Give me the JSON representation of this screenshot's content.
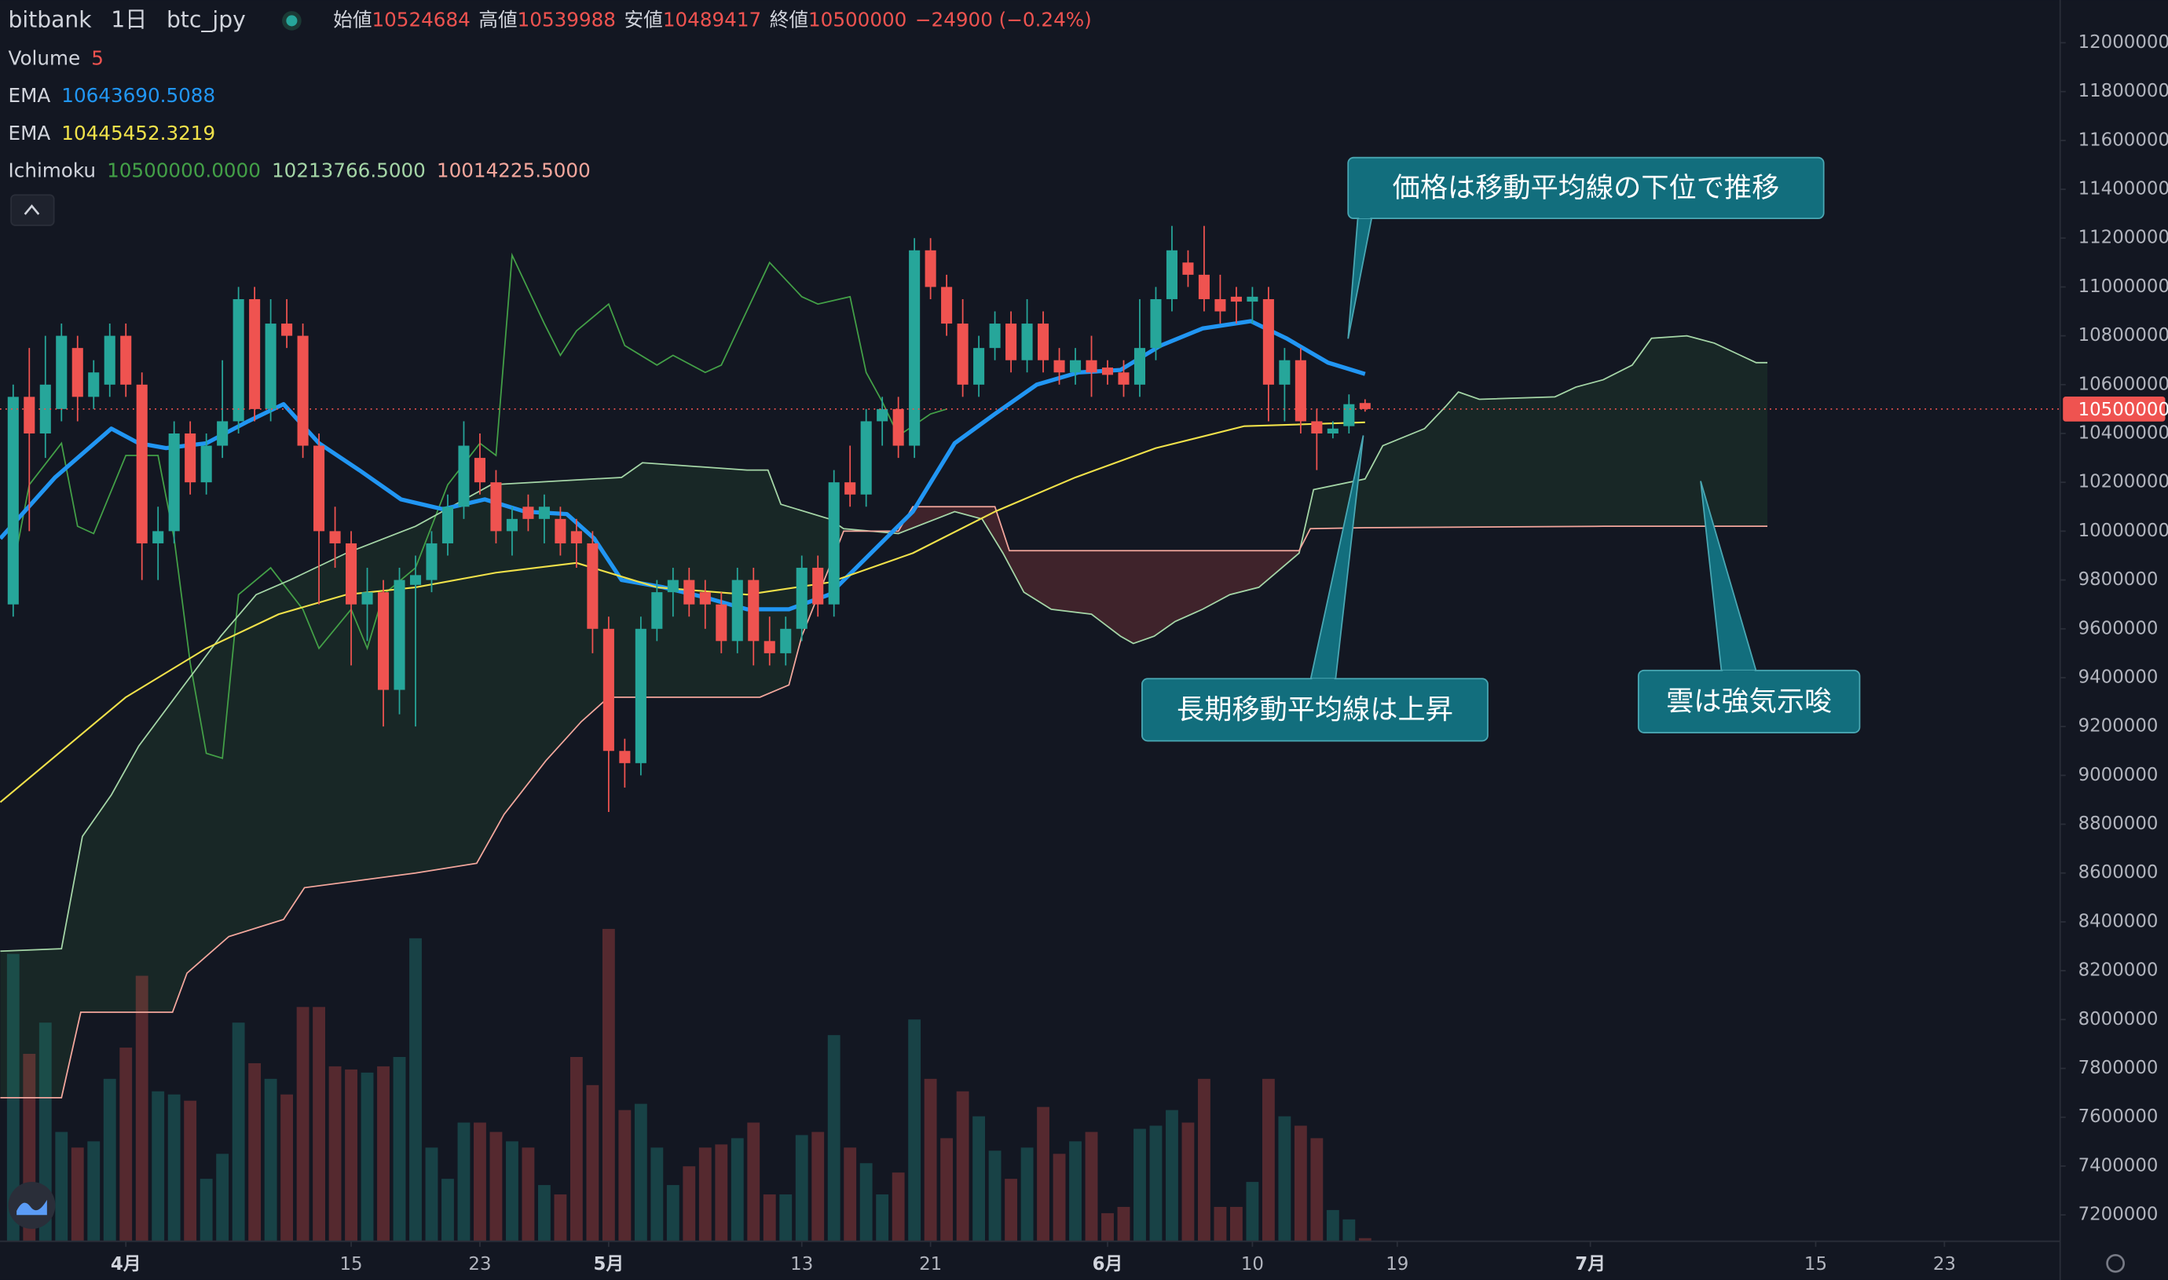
{
  "chart_data": {
    "type": "candlestick",
    "header": {
      "symbol": "bitbank",
      "interval": "1日",
      "pair": "btc_jpy",
      "open_label": "始値",
      "high_label": "高値",
      "low_label": "安値",
      "close_label": "終値",
      "change": "−24900 (−0.24%)"
    },
    "up_color": "#26a69a",
    "down_color": "#ef5350",
    "x": [
      -7,
      -6,
      -5,
      -4,
      -3,
      -2,
      -1,
      0,
      1,
      2,
      3,
      4,
      5,
      6,
      7,
      8,
      9,
      10,
      11,
      12,
      13,
      14,
      15,
      16,
      17,
      18,
      19,
      20,
      21,
      22,
      23,
      24,
      25,
      26,
      27,
      28,
      29,
      30,
      31,
      32,
      33,
      34,
      35,
      36,
      37,
      38,
      39,
      40,
      41,
      42,
      43,
      44,
      45,
      46,
      47,
      48,
      49,
      50,
      51,
      52,
      53,
      54,
      55,
      56,
      57,
      58,
      59,
      60,
      61,
      62,
      63,
      64,
      65,
      66,
      67,
      68,
      69,
      70,
      71,
      72,
      73,
      74,
      75,
      76,
      77
    ],
    "ohlc": [
      [
        9700000,
        10600000,
        9650000,
        10550000
      ],
      [
        10550000,
        10750000,
        10000000,
        10400000
      ],
      [
        10400000,
        10800000,
        10300000,
        10600000
      ],
      [
        10500000,
        10850000,
        10450000,
        10800000
      ],
      [
        10750000,
        10800000,
        10450000,
        10550000
      ],
      [
        10550000,
        10700000,
        10500000,
        10650000
      ],
      [
        10600000,
        10850000,
        10550000,
        10800000
      ],
      [
        10800000,
        10850000,
        10550000,
        10600000
      ],
      [
        10600000,
        10650000,
        9800000,
        9950000
      ],
      [
        9950000,
        10100000,
        9800000,
        10000000
      ],
      [
        10000000,
        10450000,
        9950000,
        10400000
      ],
      [
        10400000,
        10450000,
        10150000,
        10200000
      ],
      [
        10200000,
        10400000,
        10150000,
        10350000
      ],
      [
        10350000,
        10700000,
        10300000,
        10450000
      ],
      [
        10450000,
        11000000,
        10400000,
        10950000
      ],
      [
        10950000,
        11000000,
        10450000,
        10500000
      ],
      [
        10500000,
        10950000,
        10450000,
        10850000
      ],
      [
        10850000,
        10950000,
        10750000,
        10800000
      ],
      [
        10800000,
        10850000,
        10300000,
        10350000
      ],
      [
        10350000,
        10400000,
        9700000,
        10000000
      ],
      [
        10000000,
        10100000,
        9850000,
        9950000
      ],
      [
        9950000,
        10000000,
        9450000,
        9700000
      ],
      [
        9700000,
        9850000,
        9550000,
        9750000
      ],
      [
        9750000,
        9800000,
        9200000,
        9350000
      ],
      [
        9350000,
        9850000,
        9250000,
        9800000
      ],
      [
        9780000,
        9900000,
        9200000,
        9820000
      ],
      [
        9800000,
        10000000,
        9750000,
        9950000
      ],
      [
        9950000,
        10150000,
        9900000,
        10100000
      ],
      [
        10100000,
        10450000,
        10050000,
        10350000
      ],
      [
        10300000,
        10400000,
        10150000,
        10200000
      ],
      [
        10200000,
        10250000,
        9950000,
        10000000
      ],
      [
        10000000,
        10100000,
        9900000,
        10050000
      ],
      [
        10100000,
        10150000,
        10000000,
        10050000
      ],
      [
        10050000,
        10150000,
        9950000,
        10100000
      ],
      [
        10050000,
        10100000,
        9900000,
        9950000
      ],
      [
        10000000,
        10050000,
        9850000,
        9950000
      ],
      [
        9950000,
        10000000,
        9500000,
        9600000
      ],
      [
        9600000,
        9650000,
        8850000,
        9100000
      ],
      [
        9100000,
        9150000,
        8950000,
        9050000
      ],
      [
        9050000,
        9650000,
        9000000,
        9600000
      ],
      [
        9600000,
        9800000,
        9550000,
        9750000
      ],
      [
        9750000,
        9850000,
        9650000,
        9800000
      ],
      [
        9800000,
        9850000,
        9650000,
        9700000
      ],
      [
        9750000,
        9800000,
        9600000,
        9700000
      ],
      [
        9700000,
        9750000,
        9500000,
        9550000
      ],
      [
        9550000,
        9850000,
        9500000,
        9800000
      ],
      [
        9800000,
        9850000,
        9450000,
        9550000
      ],
      [
        9550000,
        9650000,
        9450000,
        9500000
      ],
      [
        9500000,
        9650000,
        9450000,
        9600000
      ],
      [
        9600000,
        9900000,
        9550000,
        9850000
      ],
      [
        9850000,
        9900000,
        9650000,
        9700000
      ],
      [
        9700000,
        10250000,
        9650000,
        10200000
      ],
      [
        10200000,
        10350000,
        10100000,
        10150000
      ],
      [
        10150000,
        10500000,
        10100000,
        10450000
      ],
      [
        10450000,
        10550000,
        10350000,
        10500000
      ],
      [
        10500000,
        10550000,
        10300000,
        10350000
      ],
      [
        10350000,
        11200000,
        10300000,
        11150000
      ],
      [
        11150000,
        11200000,
        10950000,
        11000000
      ],
      [
        11000000,
        11050000,
        10800000,
        10850000
      ],
      [
        10850000,
        10950000,
        10550000,
        10600000
      ],
      [
        10600000,
        10800000,
        10550000,
        10750000
      ],
      [
        10750000,
        10900000,
        10700000,
        10850000
      ],
      [
        10850000,
        10900000,
        10650000,
        10700000
      ],
      [
        10700000,
        10950000,
        10650000,
        10850000
      ],
      [
        10850000,
        10900000,
        10650000,
        10700000
      ],
      [
        10700000,
        10750000,
        10600000,
        10650000
      ],
      [
        10650000,
        10750000,
        10600000,
        10700000
      ],
      [
        10700000,
        10800000,
        10550000,
        10650000
      ],
      [
        10670000,
        10700000,
        10600000,
        10640000
      ],
      [
        10650000,
        10700000,
        10550000,
        10600000
      ],
      [
        10600000,
        10950000,
        10550000,
        10750000
      ],
      [
        10750000,
        11000000,
        10700000,
        10950000
      ],
      [
        10950000,
        11250000,
        10900000,
        11150000
      ],
      [
        11100000,
        11150000,
        11000000,
        11050000
      ],
      [
        11050000,
        11250000,
        10900000,
        10950000
      ],
      [
        10950000,
        11050000,
        10850000,
        10900000
      ],
      [
        10960000,
        11000000,
        10850000,
        10940000
      ],
      [
        10940000,
        11000000,
        10850000,
        10960000
      ],
      [
        10950000,
        11000000,
        10450000,
        10600000
      ],
      [
        10600000,
        10750000,
        10450000,
        10700000
      ],
      [
        10700000,
        10750000,
        10400000,
        10450000
      ],
      [
        10450000,
        10500000,
        10250000,
        10400000
      ],
      [
        10400000,
        10450000,
        10380000,
        10420000
      ],
      [
        10430000,
        10560000,
        10400000,
        10520000
      ],
      [
        10524684,
        10539988,
        10489417,
        10500000
      ]
    ],
    "volume": {
      "name": "Volume",
      "values": [
        460,
        300,
        350,
        175,
        150,
        160,
        260,
        310,
        425,
        240,
        235,
        225,
        100,
        140,
        350,
        285,
        260,
        235,
        375,
        375,
        280,
        275,
        270,
        280,
        295,
        485,
        150,
        100,
        190,
        190,
        175,
        160,
        150,
        90,
        75,
        295,
        250,
        500,
        210,
        220,
        150,
        90,
        120,
        150,
        155,
        165,
        190,
        75,
        75,
        170,
        175,
        330,
        150,
        125,
        75,
        110,
        355,
        260,
        165,
        240,
        200,
        145,
        100,
        150,
        215,
        140,
        160,
        175,
        45,
        55,
        180,
        185,
        210,
        190,
        260,
        55,
        55,
        95,
        260,
        200,
        185,
        165,
        50,
        35,
        5
      ]
    },
    "lines": [
      {
        "name": "EMA",
        "color": "#2196f3",
        "width": 3,
        "x": [
          -7.8,
          -4.4,
          -0.9,
          0.8,
          2.5,
          5,
          7.6,
          9.8,
          12,
          14.5,
          17.1,
          19.7,
          22.3,
          24.8,
          27.4,
          29.1,
          30.8,
          33.4,
          35.9,
          38.6,
          41.2,
          43.7,
          46.3,
          48.9,
          51.5,
          54,
          56.6,
          59.2,
          61.8,
          64.3,
          66.9,
          69.9,
          72.1,
          74.7,
          77
        ],
        "values": [
          9970000,
          10220000,
          10420000,
          10360000,
          10340000,
          10360000,
          10450000,
          10520000,
          10360000,
          10250000,
          10130000,
          10090000,
          10130000,
          10080000,
          10070000,
          9970000,
          9800000,
          9770000,
          9730000,
          9680000,
          9680000,
          9740000,
          9910000,
          10080000,
          10360000,
          10480000,
          10600000,
          10650000,
          10660000,
          10760000,
          10830000,
          10860000,
          10790000,
          10690000,
          10643690.5088
        ]
      },
      {
        "name": "EMA",
        "color": "#f0e14a",
        "width": 1.2,
        "x": [
          -7.8,
          0,
          5,
          9.5,
          13.7,
          18,
          23,
          28,
          33,
          38.6,
          43.7,
          48.9,
          54,
          59,
          64,
          69.5,
          77
        ],
        "values": [
          8890000,
          9320000,
          9520000,
          9660000,
          9740000,
          9770000,
          9830000,
          9870000,
          9770000,
          9740000,
          9790000,
          9910000,
          10080000,
          10220000,
          10340000,
          10430000,
          10445452.3219
        ]
      }
    ],
    "ichimoku": {
      "name": "Ichimoku",
      "value_labels": [
        "10500000.0000",
        "10213766.5000",
        "10014225.5000"
      ],
      "cloud_colors": [
        "rgba(67,160,71,0.12)",
        "rgba(239,83,80,0.2)"
      ],
      "series": [
        {
          "color": "#43a047",
          "x": [
            -7,
            -6,
            -4,
            -3,
            -2,
            0,
            2,
            3,
            4,
            5,
            6,
            7,
            9,
            11,
            12,
            14,
            15,
            16,
            18,
            20,
            22,
            23,
            24,
            26,
            27,
            28,
            30,
            31,
            33,
            34,
            36,
            37,
            38,
            40,
            42,
            43,
            45,
            46,
            47,
            48,
            50,
            51
          ],
          "values": [
            9850000,
            10190000,
            10360000,
            10020000,
            9990000,
            10310000,
            10310000,
            9970000,
            9460000,
            9090000,
            9070000,
            9740000,
            9850000,
            9680000,
            9520000,
            9680000,
            9520000,
            9740000,
            9850000,
            10190000,
            10360000,
            10310000,
            11130000,
            10850000,
            10720000,
            10820000,
            10930000,
            10760000,
            10680000,
            10720000,
            10650000,
            10680000,
            10820000,
            11100000,
            10960000,
            10930000,
            10960000,
            10650000,
            10530000,
            10390000,
            10480000,
            10500000
          ]
        },
        {
          "color": "#a5d6a7",
          "x": [
            -7.8,
            -4,
            -2.7,
            -0.9,
            0.8,
            3.4,
            5.9,
            8.1,
            10.2,
            13.7,
            18,
            22.7,
            30.8,
            32.1,
            38.6,
            39.9,
            40.7,
            43.7,
            44.6,
            48,
            51.5,
            53.2,
            54.5,
            55.8,
            57.5,
            60,
            61.8,
            62.6,
            63.9,
            65.2,
            66.9,
            68.6,
            70.4,
            72.9,
            73.8,
            77,
            78.1,
            80.7,
            82,
            82.8,
            84.1,
            88.8,
            90.1,
            91.8,
            93.6,
            94.8,
            97,
            98.7,
            100,
            101.3,
            102
          ],
          "values": [
            8280000,
            8290000,
            8750000,
            8920000,
            9120000,
            9350000,
            9570000,
            9740000,
            9800000,
            9910000,
            10020000,
            10190000,
            10220000,
            10280000,
            10250000,
            10250000,
            10110000,
            10050000,
            10010000,
            9990000,
            10080000,
            10050000,
            9910000,
            9750000,
            9680000,
            9660000,
            9570000,
            9540000,
            9570000,
            9630000,
            9680000,
            9740000,
            9770000,
            9910000,
            10170000,
            10213766.5,
            10350000,
            10420000,
            10510000,
            10570000,
            10540000,
            10550000,
            10590000,
            10620000,
            10680000,
            10790000,
            10800000,
            10770000,
            10730000,
            10690000,
            10690000
          ]
        },
        {
          "color": "#f4a79d",
          "x": [
            -7.8,
            -4,
            -2.8,
            2.9,
            3.8,
            6.4,
            9.8,
            11.1,
            18,
            21.8,
            23.5,
            26.1,
            28.3,
            30,
            39.4,
            41.2,
            42,
            43.7,
            44.6,
            48,
            48.9,
            54,
            54.9,
            72.9,
            73.6,
            77,
            91.8,
            102
          ],
          "values": [
            7680000,
            7680000,
            8030000,
            8030000,
            8190000,
            8340000,
            8410000,
            8540000,
            8600000,
            8640000,
            8840000,
            9060000,
            9220000,
            9320000,
            9320000,
            9370000,
            9570000,
            9850000,
            10000000,
            10000000,
            10100000,
            10100000,
            9920000,
            9920000,
            10010000,
            10014225.5,
            10020000,
            10020000
          ]
        }
      ]
    },
    "xlim": [
      -7.82,
      120.19
    ],
    "xticks": [
      {
        "value": 0,
        "label": "4月"
      },
      {
        "value": 14,
        "label": "15"
      },
      {
        "value": 22,
        "label": "23"
      },
      {
        "value": 30,
        "label": "5月"
      },
      {
        "value": 42,
        "label": "13"
      },
      {
        "value": 50,
        "label": "21"
      },
      {
        "value": 61,
        "label": "6月"
      },
      {
        "value": 70,
        "label": "10"
      },
      {
        "value": 79,
        "label": "19"
      },
      {
        "value": 91,
        "label": "7月"
      },
      {
        "value": 105,
        "label": "15"
      },
      {
        "value": 113,
        "label": "23"
      }
    ],
    "ylim": [
      7092000,
      12175000
    ],
    "yticks": [
      7200000,
      7400000,
      7600000,
      7800000,
      8000000,
      8200000,
      8400000,
      8600000,
      8800000,
      9000000,
      9200000,
      9400000,
      9600000,
      9800000,
      10000000,
      10200000,
      10400000,
      10600000,
      10800000,
      11000000,
      11200000,
      11400000,
      11600000,
      11800000,
      12000000
    ],
    "annotations": [
      {
        "text": "価格は移動平均線の下位で推移"
      },
      {
        "text": "長期移動平均線は上昇"
      },
      {
        "text": "雲は強気示唆"
      }
    ]
  }
}
